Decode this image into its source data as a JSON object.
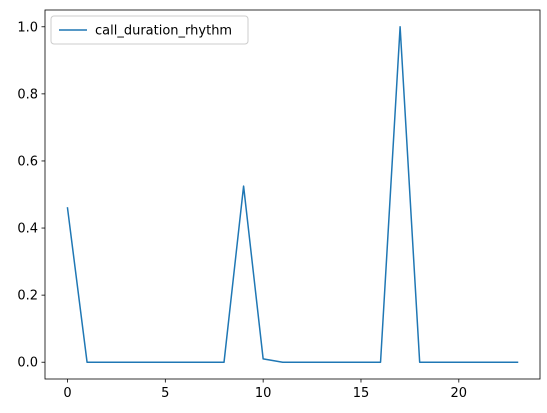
{
  "chart_data": {
    "type": "line",
    "title": "",
    "xlabel": "",
    "ylabel": "",
    "xlim": [
      -1.15,
      24.15
    ],
    "ylim": [
      -0.05,
      1.05
    ],
    "xticks": [
      0,
      5,
      10,
      15,
      20
    ],
    "yticks": [
      0.0,
      0.2,
      0.4,
      0.6,
      0.8,
      1.0
    ],
    "xtick_labels": [
      "0",
      "5",
      "10",
      "15",
      "20"
    ],
    "ytick_labels": [
      "0.0",
      "0.2",
      "0.4",
      "0.6",
      "0.8",
      "1.0"
    ],
    "grid": false,
    "legend_position": "upper-left",
    "series": [
      {
        "name": "call_duration_rhythm",
        "color": "#1f77b4",
        "x": [
          0,
          1,
          2,
          3,
          4,
          5,
          6,
          7,
          8,
          9,
          10,
          11,
          12,
          13,
          14,
          15,
          16,
          17,
          18,
          19,
          20,
          21,
          22,
          23
        ],
        "y": [
          0.46,
          0,
          0,
          0,
          0,
          0,
          0,
          0,
          0,
          0.525,
          0.01,
          0,
          0,
          0,
          0,
          0,
          0,
          1.0,
          0,
          0,
          0,
          0,
          0,
          0
        ]
      }
    ]
  }
}
